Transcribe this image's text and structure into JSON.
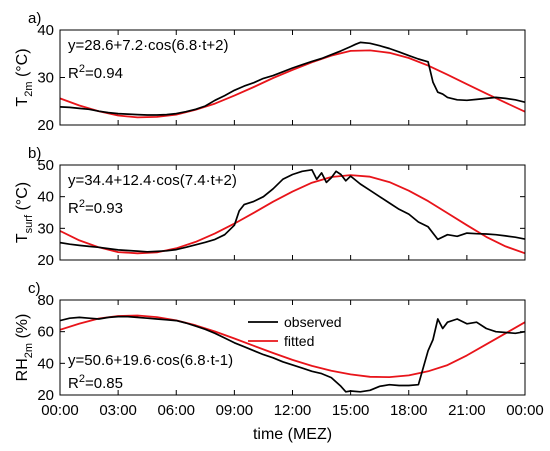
{
  "chart_data": [
    {
      "type": "line",
      "panel_label": "a)",
      "ylabel_main": "T",
      "ylabel_sub": "2m",
      "ylabel_unit": " (°C)",
      "ylim": [
        20,
        40
      ],
      "yticks": [
        "20",
        "30",
        "40"
      ],
      "equation": "y=28.6+7.2·cos(6.8·t+2)",
      "r2_prefix": "R",
      "r2_sup": "2",
      "r2_value": "=0.94",
      "series": [
        {
          "name": "observed",
          "color": "#000000",
          "x": [
            0,
            0.5,
            1,
            1.5,
            2,
            2.5,
            3,
            3.5,
            4,
            4.5,
            5,
            5.5,
            6,
            6.5,
            7,
            7.5,
            8,
            8.5,
            9,
            9.5,
            10,
            10.5,
            11,
            11.5,
            12,
            12.5,
            13,
            13.5,
            14,
            14.5,
            15,
            15.25,
            15.5,
            16,
            16.5,
            17,
            17.5,
            18,
            18.5,
            19,
            19.25,
            19.5,
            19.75,
            20,
            20.5,
            21,
            21.5,
            22,
            22.5,
            23,
            23.5,
            24
          ],
          "y": [
            23.8,
            23.7,
            23.5,
            23.3,
            22.9,
            22.6,
            22.4,
            22.3,
            22.2,
            22.1,
            22.1,
            22.2,
            22.4,
            22.8,
            23.3,
            24.0,
            25.2,
            26.2,
            27.3,
            28.2,
            28.9,
            29.8,
            30.4,
            31.2,
            32.0,
            32.7,
            33.4,
            34.0,
            34.8,
            35.6,
            36.5,
            37.0,
            37.4,
            37.2,
            36.7,
            36.1,
            35.4,
            34.6,
            33.9,
            33.3,
            29.0,
            26.9,
            26.5,
            25.8,
            25.3,
            25.2,
            25.4,
            25.6,
            25.8,
            25.6,
            25.3,
            24.8
          ]
        },
        {
          "name": "fitted",
          "color": "#e8141a",
          "x": [
            0,
            1,
            2,
            3,
            4,
            5,
            6,
            7,
            8,
            9,
            10,
            11,
            12,
            13,
            14,
            15,
            16,
            17,
            18,
            19,
            20,
            21,
            22,
            23,
            24
          ],
          "y": [
            25.6,
            24.1,
            22.9,
            22.0,
            21.6,
            21.7,
            22.2,
            23.2,
            24.5,
            26.2,
            28.0,
            29.9,
            31.6,
            33.2,
            34.6,
            35.6,
            35.7,
            35.2,
            34.1,
            32.5,
            30.6,
            28.6,
            26.6,
            24.7,
            22.8
          ]
        }
      ]
    },
    {
      "type": "line",
      "panel_label": "b)",
      "ylabel_main": "T",
      "ylabel_sub": "surf",
      "ylabel_unit": " (°C)",
      "ylim": [
        20,
        50
      ],
      "yticks": [
        "20",
        "30",
        "40",
        "50"
      ],
      "equation": "y=34.4+12.4·cos(7.4·t+2)",
      "r2_prefix": "R",
      "r2_sup": "2",
      "r2_value": "=0.93",
      "series": [
        {
          "name": "observed",
          "color": "#000000",
          "x": [
            0,
            0.5,
            1,
            1.5,
            2,
            2.5,
            3,
            3.5,
            4,
            4.5,
            5,
            5.5,
            6,
            6.5,
            7,
            7.5,
            8,
            8.5,
            9,
            9.25,
            9.5,
            10,
            10.5,
            11,
            11.5,
            12,
            12.5,
            13,
            13.25,
            13.5,
            13.75,
            14,
            14.25,
            14.5,
            14.75,
            15,
            15.5,
            16,
            16.5,
            17,
            17.5,
            18,
            18.5,
            19,
            19.5,
            20,
            20.5,
            21,
            21.5,
            22,
            22.5,
            23,
            23.5,
            24
          ],
          "y": [
            25.5,
            25.0,
            24.6,
            24.3,
            24.0,
            23.6,
            23.2,
            23.0,
            22.8,
            22.6,
            22.7,
            22.9,
            23.3,
            24.0,
            24.8,
            25.6,
            26.5,
            28.0,
            31.0,
            35.5,
            37.5,
            38.5,
            40.0,
            42.5,
            45.5,
            47.0,
            48.0,
            48.5,
            45.5,
            47.5,
            44.5,
            46.0,
            48.0,
            47.0,
            45.0,
            46.5,
            44.0,
            42.0,
            40.0,
            38.0,
            36.0,
            34.5,
            32.0,
            30.5,
            26.5,
            28.0,
            27.5,
            28.5,
            28.3,
            28.2,
            28.0,
            27.6,
            27.2,
            26.6
          ]
        },
        {
          "name": "fitted",
          "color": "#e8141a",
          "x": [
            0,
            1,
            2,
            3,
            4,
            5,
            6,
            7,
            8,
            9,
            10,
            11,
            12,
            13,
            14,
            15,
            16,
            17,
            18,
            19,
            20,
            21,
            22,
            23,
            24
          ],
          "y": [
            29.2,
            26.2,
            24.0,
            22.5,
            22.1,
            22.4,
            23.7,
            25.7,
            28.4,
            31.5,
            34.9,
            38.4,
            41.6,
            44.4,
            46.2,
            46.8,
            46.3,
            44.6,
            41.9,
            38.6,
            34.8,
            31.0,
            27.3,
            24.3,
            22.1
          ]
        }
      ]
    },
    {
      "type": "line",
      "panel_label": "c)",
      "ylabel_main": "RH",
      "ylabel_sub": "2m",
      "ylabel_unit": " (%)",
      "ylim": [
        20,
        80
      ],
      "yticks": [
        "20",
        "40",
        "60",
        "80"
      ],
      "equation": "y=50.6+19.6·cos(6.8·t-1)",
      "r2_prefix": "R",
      "r2_sup": "2",
      "r2_value": "=0.85",
      "xlabel": "time (MEZ)",
      "xticks": [
        "00:00",
        "03:00",
        "06:00",
        "09:00",
        "12:00",
        "15:00",
        "18:00",
        "21:00",
        "00:00"
      ],
      "legend": [
        "observed",
        "fitted"
      ],
      "series": [
        {
          "name": "observed",
          "color": "#000000",
          "x": [
            0,
            0.5,
            1,
            1.5,
            2,
            2.5,
            3,
            3.5,
            4,
            4.5,
            5,
            5.5,
            6,
            6.5,
            7,
            7.5,
            8,
            8.5,
            9,
            9.5,
            10,
            10.5,
            11,
            11.5,
            12,
            12.5,
            13,
            13.5,
            14,
            14.5,
            14.75,
            15,
            15.5,
            16,
            16.5,
            17,
            17.5,
            18,
            18.5,
            19,
            19.25,
            19.5,
            19.75,
            20,
            20.5,
            21,
            21.5,
            22,
            22.5,
            23,
            23.5,
            24
          ],
          "y": [
            67.0,
            68.5,
            69.0,
            68.5,
            68.0,
            69.0,
            69.5,
            69.5,
            69.0,
            68.5,
            68.0,
            67.5,
            67.0,
            65.5,
            63.5,
            61.5,
            59.0,
            56.0,
            53.0,
            50.5,
            48.0,
            45.5,
            43.5,
            41.0,
            39.0,
            37.0,
            35.0,
            33.5,
            31.0,
            25.5,
            22.0,
            22.5,
            22.0,
            23.0,
            25.5,
            26.5,
            26.0,
            26.0,
            26.5,
            48.0,
            55.0,
            68.0,
            62.0,
            66.0,
            68.0,
            65.0,
            66.0,
            62.0,
            60.0,
            59.5,
            59.0,
            60.0
          ]
        },
        {
          "name": "fitted",
          "color": "#e8141a",
          "x": [
            0,
            1,
            2,
            3,
            4,
            5,
            6,
            7,
            8,
            9,
            10,
            11,
            12,
            13,
            14,
            15,
            16,
            17,
            18,
            19,
            20,
            21,
            22,
            23,
            24
          ],
          "y": [
            61.2,
            65.1,
            68.3,
            69.9,
            70.2,
            69.2,
            67.1,
            64.0,
            60.1,
            55.7,
            51.1,
            46.5,
            42.2,
            38.4,
            35.3,
            33.0,
            31.5,
            31.3,
            32.4,
            35.0,
            38.9,
            45.0,
            52.0,
            59.0,
            66.0
          ]
        }
      ]
    }
  ]
}
